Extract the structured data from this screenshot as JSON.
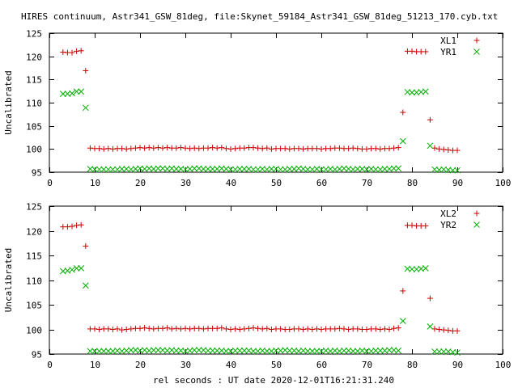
{
  "page": {
    "title": "HIRES continuum, Astr341_GSW_81deg, file:Skynet_59184_Astr341_GSW_81deg_51213_170.cyb.txt",
    "xlabel": "rel seconds : UT date 2020-12-01T16:21:31.240"
  },
  "colors": {
    "red": "#cc0000",
    "green": "#00b000",
    "frame": "#000000",
    "background": "#ffffff"
  },
  "chart_data": [
    {
      "type": "scatter",
      "title": "",
      "xlabel": "",
      "ylabel": "Uncalibrated",
      "xlim": [
        0,
        100
      ],
      "ylim": [
        95,
        125
      ],
      "x_ticks": [
        0,
        10,
        20,
        30,
        40,
        50,
        60,
        70,
        80,
        90,
        100
      ],
      "y_ticks": [
        95,
        100,
        105,
        110,
        115,
        120,
        125
      ],
      "grid": false,
      "legend_position": "top-right",
      "series": [
        {
          "name": "XL1",
          "marker": "plus",
          "color": "#cc0000",
          "x": [
            3,
            4,
            5,
            6,
            7,
            8,
            9,
            10,
            11,
            12,
            13,
            14,
            15,
            16,
            17,
            18,
            19,
            20,
            21,
            22,
            23,
            24,
            25,
            26,
            27,
            28,
            29,
            30,
            31,
            32,
            33,
            34,
            35,
            36,
            37,
            38,
            39,
            40,
            41,
            42,
            43,
            44,
            45,
            46,
            47,
            48,
            49,
            50,
            51,
            52,
            53,
            54,
            55,
            56,
            57,
            58,
            59,
            60,
            61,
            62,
            63,
            64,
            65,
            66,
            67,
            68,
            69,
            70,
            71,
            72,
            73,
            74,
            75,
            76,
            77,
            78,
            79,
            80,
            81,
            82,
            83,
            84,
            85,
            86,
            87,
            88,
            89,
            90
          ],
          "y": [
            120.9,
            120.8,
            120.8,
            121.1,
            121.2,
            116.9,
            100.2,
            100.1,
            100.1,
            100.0,
            100.1,
            100.0,
            100.1,
            100.1,
            100.0,
            100.1,
            100.2,
            100.3,
            100.2,
            100.3,
            100.2,
            100.3,
            100.2,
            100.3,
            100.2,
            100.2,
            100.3,
            100.2,
            100.1,
            100.2,
            100.1,
            100.2,
            100.2,
            100.3,
            100.2,
            100.3,
            100.1,
            100.0,
            100.1,
            100.2,
            100.2,
            100.3,
            100.3,
            100.2,
            100.1,
            100.2,
            100.0,
            100.1,
            100.1,
            100.1,
            100.0,
            100.1,
            100.1,
            100.0,
            100.1,
            100.1,
            100.1,
            100.0,
            100.1,
            100.1,
            100.2,
            100.2,
            100.1,
            100.1,
            100.2,
            100.1,
            100.0,
            100.0,
            100.1,
            100.1,
            100.0,
            100.1,
            100.1,
            100.2,
            100.3,
            107.9,
            121.1,
            121.1,
            121.0,
            121.0,
            121.0,
            106.3,
            100.2,
            100.0,
            99.9,
            99.8,
            99.7,
            99.7
          ]
        },
        {
          "name": "YR1",
          "marker": "cross",
          "color": "#00b000",
          "x": [
            3,
            4,
            5,
            6,
            7,
            8,
            9,
            10,
            11,
            12,
            13,
            14,
            15,
            16,
            17,
            18,
            19,
            20,
            21,
            22,
            23,
            24,
            25,
            26,
            27,
            28,
            29,
            30,
            31,
            32,
            33,
            34,
            35,
            36,
            37,
            38,
            39,
            40,
            41,
            42,
            43,
            44,
            45,
            46,
            47,
            48,
            49,
            50,
            51,
            52,
            53,
            54,
            55,
            56,
            57,
            58,
            59,
            60,
            61,
            62,
            63,
            64,
            65,
            66,
            67,
            68,
            69,
            70,
            71,
            72,
            73,
            74,
            75,
            76,
            77,
            78,
            79,
            80,
            81,
            82,
            83,
            84,
            85,
            86,
            87,
            88,
            89,
            90
          ],
          "y": [
            111.9,
            111.9,
            112.0,
            112.4,
            112.4,
            108.9,
            95.7,
            95.6,
            95.6,
            95.6,
            95.6,
            95.6,
            95.6,
            95.7,
            95.7,
            95.6,
            95.7,
            95.8,
            95.7,
            95.8,
            95.7,
            95.8,
            95.8,
            95.7,
            95.8,
            95.7,
            95.7,
            95.6,
            95.7,
            95.8,
            95.8,
            95.7,
            95.7,
            95.7,
            95.7,
            95.8,
            95.7,
            95.6,
            95.6,
            95.7,
            95.7,
            95.7,
            95.6,
            95.6,
            95.7,
            95.6,
            95.7,
            95.7,
            95.6,
            95.6,
            95.7,
            95.7,
            95.8,
            95.7,
            95.6,
            95.6,
            95.7,
            95.6,
            95.6,
            95.7,
            95.6,
            95.7,
            95.8,
            95.7,
            95.6,
            95.7,
            95.7,
            95.6,
            95.7,
            95.6,
            95.6,
            95.7,
            95.7,
            95.8,
            95.8,
            101.7,
            112.3,
            112.2,
            112.2,
            112.3,
            112.4,
            100.7,
            95.6,
            95.5,
            95.6,
            95.5,
            95.4,
            95.4
          ]
        }
      ]
    },
    {
      "type": "scatter",
      "title": "",
      "xlabel": "rel seconds : UT date 2020-12-01T16:21:31.240",
      "ylabel": "Uncalibrated",
      "xlim": [
        0,
        100
      ],
      "ylim": [
        95,
        125
      ],
      "x_ticks": [
        0,
        10,
        20,
        30,
        40,
        50,
        60,
        70,
        80,
        90,
        100
      ],
      "y_ticks": [
        95,
        100,
        105,
        110,
        115,
        120,
        125
      ],
      "grid": false,
      "legend_position": "top-right",
      "series": [
        {
          "name": "XL2",
          "marker": "plus",
          "color": "#cc0000",
          "x": [
            3,
            4,
            5,
            6,
            7,
            8,
            9,
            10,
            11,
            12,
            13,
            14,
            15,
            16,
            17,
            18,
            19,
            20,
            21,
            22,
            23,
            24,
            25,
            26,
            27,
            28,
            29,
            30,
            31,
            32,
            33,
            34,
            35,
            36,
            37,
            38,
            39,
            40,
            41,
            42,
            43,
            44,
            45,
            46,
            47,
            48,
            49,
            50,
            51,
            52,
            53,
            54,
            55,
            56,
            57,
            58,
            59,
            60,
            61,
            62,
            63,
            64,
            65,
            66,
            67,
            68,
            69,
            70,
            71,
            72,
            73,
            74,
            75,
            76,
            77,
            78,
            79,
            80,
            81,
            82,
            83,
            84,
            85,
            86,
            87,
            88,
            89,
            90
          ],
          "y": [
            120.8,
            120.8,
            120.9,
            121.1,
            121.2,
            116.9,
            100.1,
            100.1,
            100.0,
            100.1,
            100.1,
            100.0,
            100.1,
            99.9,
            100.0,
            100.1,
            100.2,
            100.2,
            100.3,
            100.2,
            100.1,
            100.2,
            100.2,
            100.3,
            100.1,
            100.2,
            100.1,
            100.2,
            100.1,
            100.2,
            100.2,
            100.1,
            100.2,
            100.2,
            100.2,
            100.3,
            100.1,
            100.0,
            100.1,
            100.0,
            100.1,
            100.2,
            100.3,
            100.2,
            100.1,
            100.2,
            100.0,
            100.1,
            100.1,
            100.0,
            100.0,
            100.1,
            100.1,
            100.0,
            100.1,
            100.0,
            100.1,
            100.0,
            100.1,
            100.1,
            100.1,
            100.2,
            100.1,
            100.0,
            100.1,
            100.1,
            100.0,
            100.0,
            100.1,
            100.1,
            100.0,
            100.1,
            100.0,
            100.2,
            100.3,
            107.8,
            121.1,
            121.1,
            121.0,
            121.0,
            121.0,
            106.3,
            100.1,
            100.0,
            99.9,
            99.8,
            99.7,
            99.7
          ]
        },
        {
          "name": "YR2",
          "marker": "cross",
          "color": "#00b000",
          "x": [
            3,
            4,
            5,
            6,
            7,
            8,
            9,
            10,
            11,
            12,
            13,
            14,
            15,
            16,
            17,
            18,
            19,
            20,
            21,
            22,
            23,
            24,
            25,
            26,
            27,
            28,
            29,
            30,
            31,
            32,
            33,
            34,
            35,
            36,
            37,
            38,
            39,
            40,
            41,
            42,
            43,
            44,
            45,
            46,
            47,
            48,
            49,
            50,
            51,
            52,
            53,
            54,
            55,
            56,
            57,
            58,
            59,
            60,
            61,
            62,
            63,
            64,
            65,
            66,
            67,
            68,
            69,
            70,
            71,
            72,
            73,
            74,
            75,
            76,
            77,
            78,
            79,
            80,
            81,
            82,
            83,
            84,
            85,
            86,
            87,
            88,
            89,
            90
          ],
          "y": [
            111.8,
            111.9,
            112.1,
            112.4,
            112.4,
            108.9,
            95.6,
            95.6,
            95.6,
            95.6,
            95.6,
            95.6,
            95.7,
            95.6,
            95.7,
            95.8,
            95.8,
            95.7,
            95.8,
            95.7,
            95.8,
            95.8,
            95.8,
            95.7,
            95.8,
            95.7,
            95.7,
            95.6,
            95.7,
            95.8,
            95.8,
            95.8,
            95.7,
            95.7,
            95.7,
            95.7,
            95.6,
            95.6,
            95.7,
            95.7,
            95.7,
            95.7,
            95.6,
            95.6,
            95.7,
            95.6,
            95.6,
            95.7,
            95.7,
            95.8,
            95.7,
            95.7,
            95.6,
            95.7,
            95.6,
            95.6,
            95.6,
            95.6,
            95.7,
            95.6,
            95.7,
            95.6,
            95.7,
            95.7,
            95.6,
            95.6,
            95.7,
            95.6,
            95.6,
            95.7,
            95.7,
            95.7,
            95.8,
            95.8,
            95.7,
            101.7,
            112.3,
            112.2,
            112.2,
            112.3,
            112.4,
            100.6,
            95.5,
            95.5,
            95.5,
            95.5,
            95.4,
            95.3
          ]
        }
      ]
    }
  ]
}
